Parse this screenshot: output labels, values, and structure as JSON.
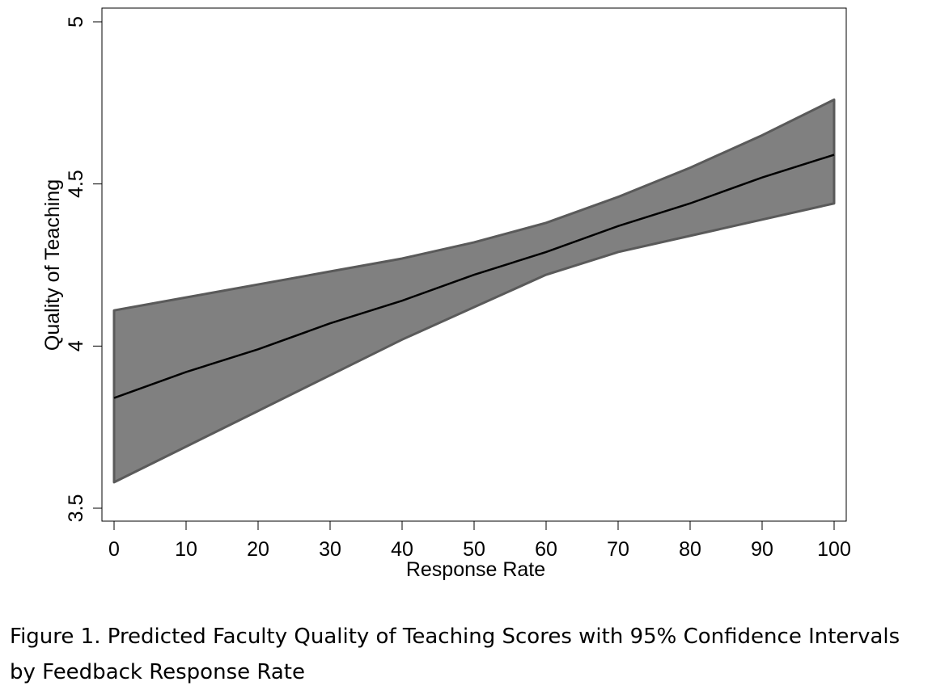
{
  "caption": "Figure 1. Predicted Faculty Quality of Teaching Scores with 95% Confidence Intervals by Feedback Response Rate",
  "chart_data": {
    "type": "line",
    "title": "",
    "xlabel": "Response Rate",
    "ylabel": "Quality of Teaching",
    "xlim": [
      0,
      100
    ],
    "ylim": [
      3.5,
      5
    ],
    "x_ticks": [
      0,
      10,
      20,
      30,
      40,
      50,
      60,
      70,
      80,
      90,
      100
    ],
    "y_ticks": [
      3.5,
      4,
      4.5,
      5
    ],
    "x_tick_labels": [
      "0",
      "10",
      "20",
      "30",
      "40",
      "50",
      "60",
      "70",
      "80",
      "90",
      "100"
    ],
    "y_tick_labels": [
      "3.5",
      "4",
      "4.5",
      "5"
    ],
    "grid": false,
    "legend": "none",
    "series": [
      {
        "type": "line",
        "x": [
          0,
          10,
          20,
          30,
          40,
          50,
          60,
          70,
          80,
          90,
          100
        ],
        "y": [
          3.84,
          3.92,
          3.99,
          4.07,
          4.14,
          4.22,
          4.29,
          4.37,
          4.44,
          4.52,
          4.59
        ]
      },
      {
        "type": "band",
        "x": [
          0,
          10,
          20,
          30,
          40,
          50,
          60,
          70,
          80,
          90,
          100
        ],
        "lower": [
          3.58,
          3.69,
          3.8,
          3.91,
          4.02,
          4.12,
          4.22,
          4.29,
          4.34,
          4.39,
          4.44
        ],
        "upper": [
          4.11,
          4.15,
          4.19,
          4.23,
          4.27,
          4.32,
          4.38,
          4.46,
          4.55,
          4.65,
          4.76
        ]
      }
    ],
    "colors": {
      "band_fill": "#808080",
      "band_edge": "#5a5a5a",
      "line": "#000000",
      "axis": "#000000"
    }
  }
}
